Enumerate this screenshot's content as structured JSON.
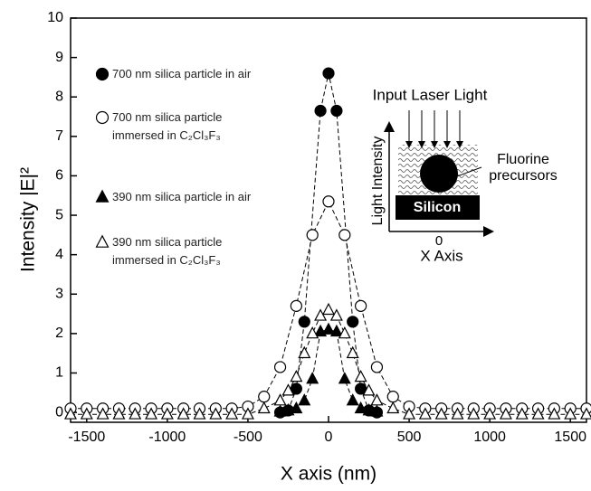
{
  "chart_data": {
    "type": "line",
    "xlabel": "X axis (nm)",
    "ylabel": "Intensity |E|²",
    "xlim": [
      -1600,
      1600
    ],
    "ylim": [
      -0.25,
      10
    ],
    "xticks": [
      -1500,
      -1000,
      -500,
      0,
      500,
      1000,
      1500
    ],
    "yticks": [
      0,
      1,
      2,
      3,
      4,
      5,
      6,
      7,
      8,
      9,
      10
    ],
    "series": [
      {
        "name": "700 nm silica particle in air",
        "color": "#000000",
        "marker": "filled-circle",
        "x": [
          -300,
          -250,
          -200,
          -150,
          -50,
          0,
          50,
          150,
          200,
          250,
          300
        ],
        "values": [
          0.0,
          0.05,
          0.6,
          2.3,
          7.65,
          8.6,
          7.65,
          2.3,
          0.6,
          0.05,
          0.0
        ]
      },
      {
        "name": "700 nm silica particle immersed in C₂Cl₃F₃",
        "color": "#000000",
        "marker": "open-circle",
        "x": [
          -1600,
          -1500,
          -1400,
          -1300,
          -1200,
          -1100,
          -1000,
          -900,
          -800,
          -700,
          -600,
          -500,
          -400,
          -300,
          -200,
          -100,
          0,
          100,
          200,
          300,
          400,
          500,
          600,
          700,
          800,
          900,
          1000,
          1100,
          1200,
          1300,
          1400,
          1500,
          1600
        ],
        "values": [
          0.1,
          0.1,
          0.1,
          0.1,
          0.1,
          0.1,
          0.1,
          0.1,
          0.1,
          0.1,
          0.1,
          0.15,
          0.4,
          1.15,
          2.7,
          4.5,
          5.35,
          4.5,
          2.7,
          1.15,
          0.4,
          0.15,
          0.1,
          0.1,
          0.1,
          0.1,
          0.1,
          0.1,
          0.1,
          0.1,
          0.1,
          0.1,
          0.1
        ]
      },
      {
        "name": "390 nm silica particle in air",
        "color": "#000000",
        "marker": "filled-triangle",
        "x": [
          -300,
          -250,
          -200,
          -150,
          -100,
          -50,
          0,
          50,
          100,
          150,
          200,
          250,
          300
        ],
        "values": [
          0.02,
          0.05,
          0.1,
          0.3,
          0.85,
          2.05,
          2.1,
          2.05,
          0.85,
          0.3,
          0.1,
          0.05,
          0.02
        ]
      },
      {
        "name": "390 nm silica particle immersed in C₂Cl₃F₃",
        "color": "#000000",
        "marker": "open-triangle",
        "x": [
          -1600,
          -1500,
          -1400,
          -1300,
          -1200,
          -1100,
          -1000,
          -900,
          -800,
          -700,
          -600,
          -500,
          -400,
          -300,
          -250,
          -200,
          -150,
          -100,
          -50,
          0,
          50,
          100,
          150,
          200,
          250,
          300,
          400,
          500,
          600,
          700,
          800,
          900,
          1000,
          1100,
          1200,
          1300,
          1400,
          1500,
          1600
        ],
        "values": [
          -0.05,
          -0.05,
          -0.05,
          -0.05,
          -0.05,
          -0.05,
          -0.05,
          -0.05,
          -0.05,
          -0.05,
          -0.05,
          -0.05,
          0.1,
          0.3,
          0.55,
          0.9,
          1.5,
          2.0,
          2.45,
          2.6,
          2.45,
          2.0,
          1.5,
          0.9,
          0.55,
          0.3,
          0.1,
          -0.05,
          -0.05,
          -0.05,
          -0.05,
          -0.05,
          -0.05,
          -0.05,
          -0.05,
          -0.05,
          -0.05,
          -0.05,
          -0.05
        ]
      }
    ]
  },
  "inset": {
    "input": "Input Laser Light",
    "precursors": "Fluorine precursors",
    "intensity": "Light Intensity",
    "substrate": "Silicon",
    "origin": "0",
    "axis": "X Axis"
  }
}
